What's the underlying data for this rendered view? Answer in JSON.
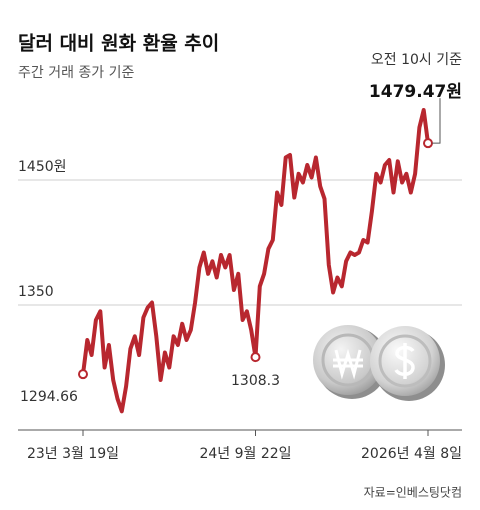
{
  "chart_data": {
    "type": "line",
    "title": "달러 대비 원화 환율 추이",
    "subtitle": "주간 거래 종가 기준",
    "annotation": "오전 10시 기준",
    "source": "자료=인베스팅닷컴",
    "categories": [
      "23년 3월 19일",
      null,
      null,
      null,
      null,
      null,
      null,
      null,
      null,
      null,
      null,
      null,
      null,
      null,
      null,
      null,
      null,
      null,
      null,
      null,
      null,
      null,
      null,
      null,
      null,
      null,
      null,
      null,
      null,
      null,
      null,
      null,
      null,
      null,
      null,
      null,
      null,
      null,
      null,
      null,
      "24년 9월 22일",
      null,
      null,
      null,
      null,
      null,
      null,
      null,
      null,
      null,
      null,
      null,
      null,
      null,
      null,
      null,
      null,
      null,
      null,
      null,
      null,
      null,
      null,
      null,
      null,
      null,
      null,
      null,
      null,
      null,
      null,
      null,
      null,
      null,
      null,
      null,
      null,
      null,
      null,
      null,
      "2026년 4월 8일"
    ],
    "series": [
      {
        "color": "#b8272f",
        "values": [
          1294.66,
          1322,
          1310,
          1338,
          1345,
          1300,
          1318,
          1290,
          1275,
          1265,
          1285,
          1315,
          1325,
          1310,
          1340,
          1348,
          1352,
          1325,
          1290,
          1312,
          1300,
          1325,
          1318,
          1335,
          1322,
          1330,
          1352,
          1380,
          1392,
          1375,
          1385,
          1372,
          1390,
          1380,
          1390,
          1362,
          1375,
          1338,
          1345,
          1330,
          1308.3,
          1365,
          1375,
          1395,
          1402,
          1440,
          1430,
          1468,
          1470,
          1436,
          1455,
          1448,
          1462,
          1452,
          1468,
          1445,
          1435,
          1382,
          1360,
          1372,
          1365,
          1385,
          1392,
          1390,
          1392,
          1402,
          1400,
          1425,
          1455,
          1448,
          1462,
          1466,
          1440,
          1465,
          1448,
          1455,
          1440,
          1455,
          1492,
          1506,
          1479.47
        ],
        "value_labels": [
          "1294.66",
          null,
          null,
          null,
          null,
          null,
          null,
          null,
          null,
          null,
          null,
          null,
          null,
          null,
          null,
          null,
          null,
          null,
          null,
          null,
          null,
          null,
          null,
          null,
          null,
          null,
          null,
          null,
          null,
          null,
          null,
          null,
          null,
          null,
          null,
          null,
          null,
          null,
          null,
          null,
          "1308.3",
          null,
          null,
          null,
          null,
          null,
          null,
          null,
          null,
          null,
          null,
          null,
          null,
          null,
          null,
          null,
          null,
          null,
          null,
          null,
          null,
          null,
          null,
          null,
          null,
          null,
          null,
          null,
          null,
          null,
          null,
          null,
          null,
          null,
          null,
          null,
          null,
          null,
          null,
          null,
          "1479.47원"
        ]
      }
    ],
    "ylim": [
      1250,
      1520
    ],
    "yticks": [
      {
        "value": 1450,
        "label": "1450원"
      },
      1350
    ],
    "grid": true
  }
}
